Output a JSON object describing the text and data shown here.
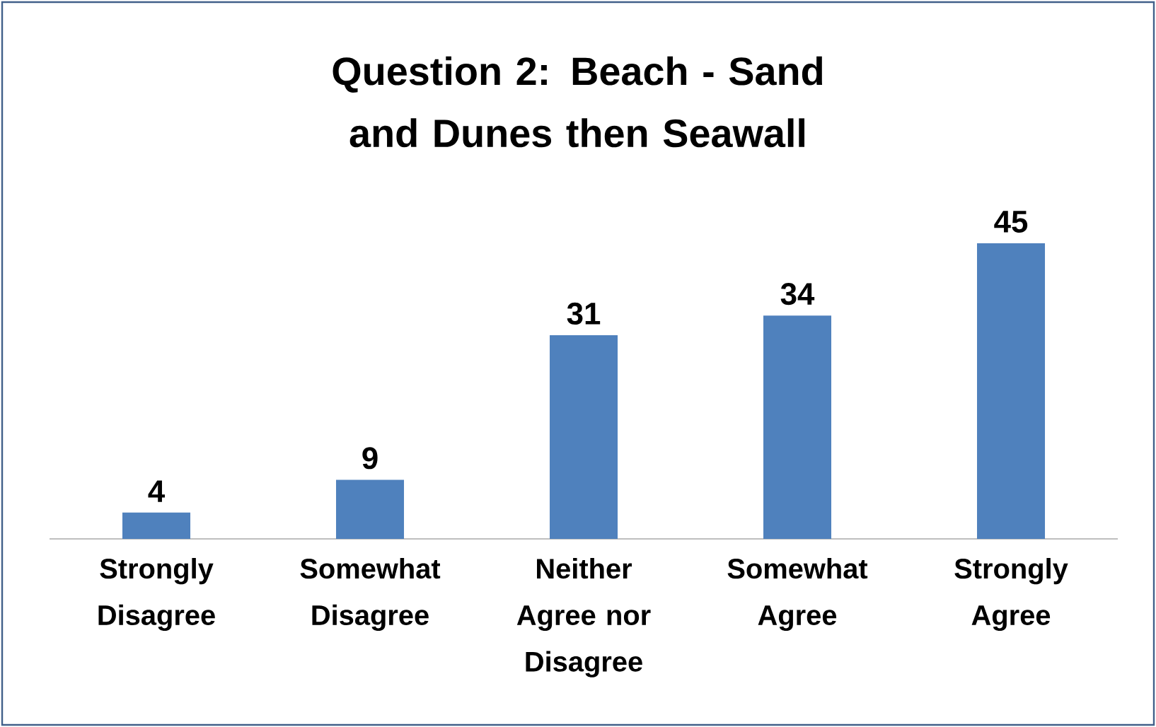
{
  "chart_data": {
    "type": "bar",
    "title": "Question 2:  Beach - Sand and Dunes then Seawall",
    "categories": [
      "Strongly Disagree",
      "Somewhat Disagree",
      "Neither Agree nor Disagree",
      "Somewhat Agree",
      "Strongly Agree"
    ],
    "values": [
      4,
      9,
      31,
      34,
      45
    ],
    "color": "#4f81bd",
    "data_labels": true
  }
}
